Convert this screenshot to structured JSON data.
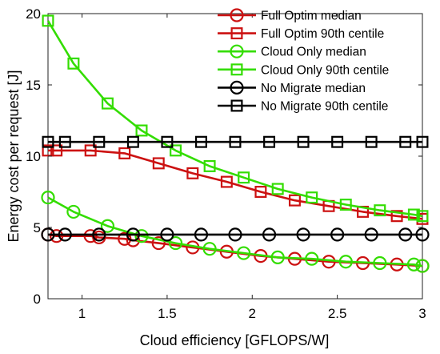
{
  "chart_data": {
    "type": "line",
    "title": "",
    "xlabel": "Cloud efficiency [GFLOPS/W]",
    "ylabel": "Energy cost per request [J]",
    "xlim": [
      0.8,
      3.0
    ],
    "ylim": [
      0,
      20
    ],
    "xticks": [
      1,
      1.5,
      2,
      2.5,
      3
    ],
    "xtick_labels": [
      "1",
      "1.5",
      "2",
      "2.5",
      "3"
    ],
    "yticks": [
      0,
      5,
      10,
      15,
      20
    ],
    "ytick_labels": [
      "0",
      "5",
      "10",
      "15",
      "20"
    ],
    "grid": false,
    "legend_position": "top-right",
    "series": [
      {
        "name": "Full Optim median",
        "color": "#cc1111",
        "marker": "circle",
        "x": [
          0.8,
          0.85,
          1.05,
          1.1,
          1.25,
          1.3,
          1.45,
          1.65,
          1.85,
          2.05,
          2.25,
          2.45,
          2.65,
          2.85,
          3.0
        ],
        "y": [
          4.5,
          4.4,
          4.4,
          4.3,
          4.2,
          4.1,
          3.9,
          3.6,
          3.3,
          3.0,
          2.8,
          2.6,
          2.5,
          2.4,
          2.3
        ]
      },
      {
        "name": "Full Optim 90th centile",
        "color": "#cc1111",
        "marker": "square",
        "x": [
          0.8,
          0.85,
          1.05,
          1.25,
          1.45,
          1.65,
          1.85,
          2.05,
          2.25,
          2.45,
          2.65,
          2.85,
          3.0
        ],
        "y": [
          10.4,
          10.4,
          10.4,
          10.2,
          9.5,
          8.8,
          8.2,
          7.5,
          6.9,
          6.5,
          6.1,
          5.8,
          5.6
        ]
      },
      {
        "name": "Cloud Only median",
        "color": "#33dd00",
        "marker": "circle",
        "x": [
          0.8,
          0.95,
          1.15,
          1.35,
          1.55,
          1.75,
          1.95,
          2.15,
          2.35,
          2.55,
          2.75,
          2.95,
          3.0
        ],
        "y": [
          7.1,
          6.1,
          5.1,
          4.4,
          3.9,
          3.5,
          3.2,
          2.9,
          2.8,
          2.6,
          2.5,
          2.4,
          2.3
        ]
      },
      {
        "name": "Cloud Only 90th centile",
        "color": "#33dd00",
        "marker": "square",
        "x": [
          0.8,
          0.95,
          1.15,
          1.35,
          1.55,
          1.75,
          1.95,
          2.15,
          2.35,
          2.55,
          2.75,
          2.95,
          3.0
        ],
        "y": [
          19.5,
          16.5,
          13.7,
          11.8,
          10.4,
          9.3,
          8.5,
          7.7,
          7.1,
          6.6,
          6.2,
          5.9,
          5.8
        ]
      },
      {
        "name": "No Migrate median",
        "color": "#000000",
        "marker": "circle",
        "x": [
          0.8,
          0.9,
          1.1,
          1.3,
          1.5,
          1.7,
          1.9,
          2.1,
          2.3,
          2.5,
          2.7,
          2.9,
          3.0
        ],
        "y": [
          4.5,
          4.5,
          4.5,
          4.5,
          4.5,
          4.5,
          4.5,
          4.5,
          4.5,
          4.5,
          4.5,
          4.5,
          4.5
        ]
      },
      {
        "name": "No Migrate 90th centile",
        "color": "#000000",
        "marker": "square",
        "x": [
          0.8,
          0.9,
          1.1,
          1.3,
          1.5,
          1.7,
          1.9,
          2.1,
          2.3,
          2.5,
          2.7,
          2.9,
          3.0
        ],
        "y": [
          11.0,
          11.0,
          11.0,
          11.0,
          11.0,
          11.0,
          11.0,
          11.0,
          11.0,
          11.0,
          11.0,
          11.0,
          11.0
        ]
      }
    ]
  }
}
